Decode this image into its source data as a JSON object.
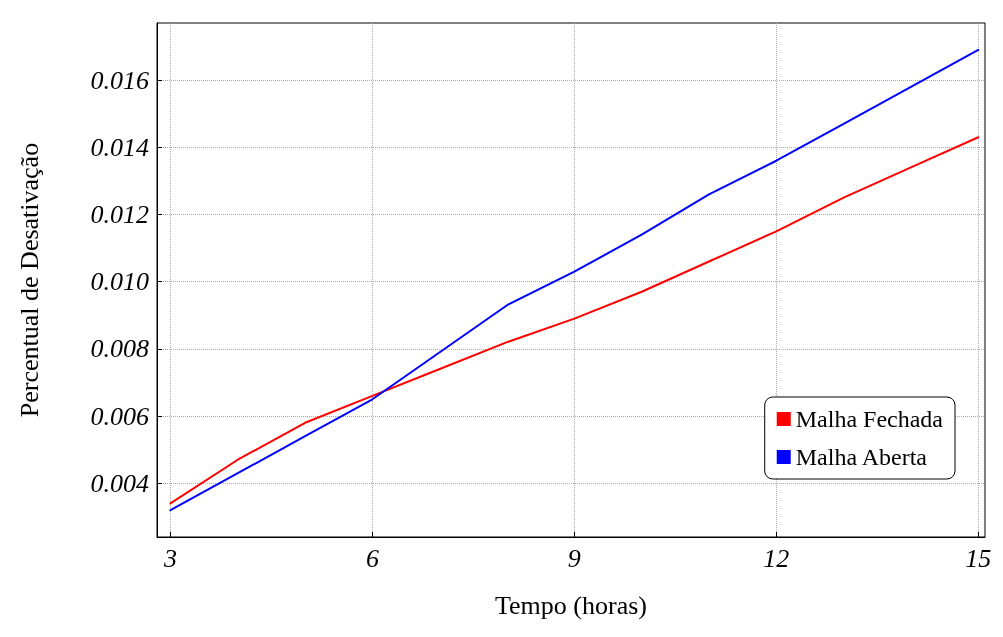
{
  "chart_data": {
    "type": "line",
    "xlabel": "Tempo (horas)",
    "ylabel": "Percentual de Desativação",
    "x": [
      3,
      4,
      5,
      6,
      7,
      8,
      9,
      10,
      11,
      12,
      13,
      14,
      15
    ],
    "series": [
      {
        "name": "Malha Fechada",
        "color": "#ff0000",
        "values": [
          0.0034,
          0.0047,
          0.0058,
          0.0066,
          0.0074,
          0.0082,
          0.0089,
          0.0097,
          0.0106,
          0.0115,
          0.0125,
          0.0134,
          0.0143
        ]
      },
      {
        "name": "Malha Aberta",
        "color": "#0000ff",
        "values": [
          0.0032,
          0.0043,
          0.0054,
          0.0065,
          0.0079,
          0.0093,
          0.0103,
          0.0114,
          0.0126,
          0.0136,
          0.0147,
          0.0158,
          0.0169
        ]
      }
    ],
    "xlim": [
      2.8,
      15.1
    ],
    "ylim": [
      0.0024,
      0.0177
    ],
    "xticks": [
      3,
      6,
      9,
      12,
      15
    ],
    "yticks": [
      {
        "value": 0.004,
        "label": "0.004"
      },
      {
        "value": 0.006,
        "label": "0.006"
      },
      {
        "value": 0.008,
        "label": "0.008"
      },
      {
        "value": 0.01,
        "label": "0.010"
      },
      {
        "value": 0.012,
        "label": "0.012"
      },
      {
        "value": 0.014,
        "label": "0.014"
      },
      {
        "value": 0.016,
        "label": "0.016"
      }
    ],
    "grid": true,
    "legend": "bottom right",
    "marker": "none",
    "line_style": "solid"
  }
}
